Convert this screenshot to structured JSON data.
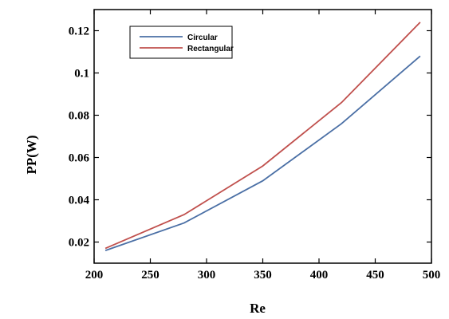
{
  "chart_data": {
    "type": "line",
    "xlabel": "Re",
    "ylabel": "PP(W)",
    "xlim": [
      200,
      500
    ],
    "ylim": [
      0.01,
      0.13
    ],
    "xticks": [
      "200",
      "250",
      "300",
      "350",
      "400",
      "450",
      "500"
    ],
    "yticks": [
      "0.02",
      "0.04",
      "0.06",
      "0.08",
      "0.1",
      "0.12"
    ],
    "grid": false,
    "legend_position": "top-left",
    "series": [
      {
        "name": "Circular",
        "color": "#4a6fa5",
        "x": [
          210,
          280,
          350,
          420,
          490
        ],
        "y": [
          0.016,
          0.029,
          0.049,
          0.076,
          0.108
        ]
      },
      {
        "name": "Rectangular",
        "color": "#c0504d",
        "x": [
          210,
          280,
          350,
          420,
          490
        ],
        "y": [
          0.017,
          0.033,
          0.056,
          0.086,
          0.124
        ]
      }
    ]
  }
}
